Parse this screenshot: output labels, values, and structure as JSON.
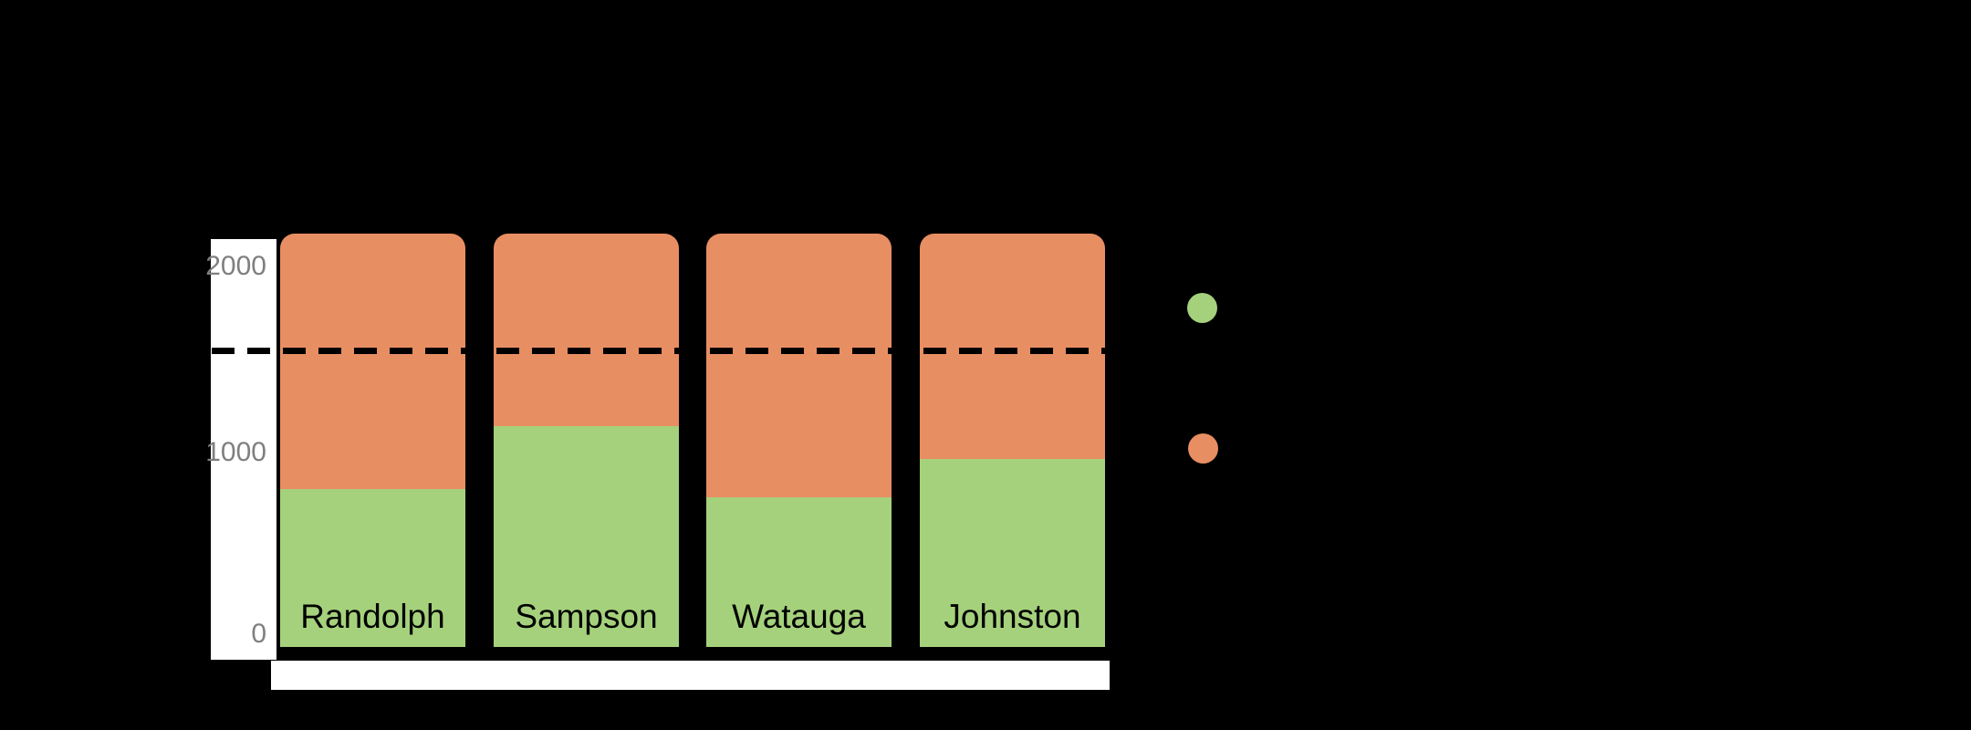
{
  "chart_data": {
    "type": "bar",
    "stacked": true,
    "categories": [
      "Randolph",
      "Sampson",
      "Watauga",
      "Johnston"
    ],
    "series": [
      {
        "name": "green",
        "color": "#a5d17c",
        "values": [
          800,
          1120,
          760,
          955
        ]
      },
      {
        "name": "orange",
        "color": "#e88e63",
        "values": [
          1375,
          1055,
          1415,
          1220
        ]
      }
    ],
    "bar_totals": [
      2175,
      2175,
      2175,
      2175
    ],
    "threshold_line": {
      "value": 1540,
      "color": "#000000",
      "style": "dashed"
    },
    "yticks": [
      0,
      1000,
      2000
    ],
    "ylim": [
      0,
      2175
    ],
    "ytick_color": "#7f7f7f",
    "axis_strip_color": "#ffffff",
    "category_label_color": "#000000",
    "figure_background": "#000000",
    "grid": "off",
    "legend": {
      "position": "right-of-plot",
      "markers": [
        {
          "shape": "circle",
          "color": "#a5d17c"
        },
        {
          "shape": "circle",
          "color": "#e88e63"
        }
      ]
    }
  }
}
